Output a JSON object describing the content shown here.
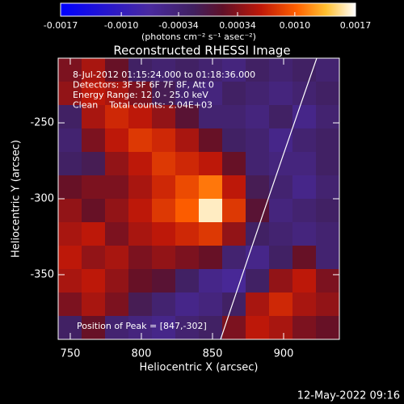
{
  "chart_data": {
    "type": "heatmap",
    "title": "Reconstructed RHESSI Image",
    "xlabel": "Heliocentric X (arcsec)",
    "ylabel": "Heliocentric Y (arcsec)",
    "annotations": [
      "8-Jul-2012 01:15:24.000 to 01:18:36.000",
      "Detectors: 3F 5F 6F 7F 8F, Att 0",
      "Energy Range: 12.0 - 25.0 keV",
      "Clean    Total counts: 2.04E+03"
    ],
    "peak_label": "Position of Peak = [847,-302]",
    "footer": "12-May-2022 09:16",
    "colorbar_label": "(photons cm⁻² s⁻¹ asec⁻²)",
    "zlim": [
      -0.0017,
      0.0017
    ],
    "zticks": [
      -0.0017,
      {
        "value": -0.001,
        "label": "-0.0010"
      },
      -0.00034,
      0.00034,
      {
        "value": 0.001,
        "label": "0.0010"
      },
      0.0017
    ],
    "colorscale": [
      [
        0,
        "#0000ff"
      ],
      [
        0.3,
        "#4a2aa0"
      ],
      [
        0.45,
        "#402060"
      ],
      [
        0.55,
        "#601028"
      ],
      [
        0.68,
        "#c01808"
      ],
      [
        0.8,
        "#ff6000"
      ],
      [
        0.9,
        "#ffc030"
      ],
      [
        1,
        "#ffffff"
      ]
    ],
    "xlim": [
      741.5,
      939.2
    ],
    "ylim": [
      -392.6,
      -207.4
    ],
    "xticks": [
      750,
      800,
      850,
      900
    ],
    "yticks": [
      -250,
      -300,
      -350
    ],
    "z": [
      [
        0.0003,
        0.0005,
        0.0002,
        -0.0002,
        -0.0003,
        -0.0002,
        -0.0003,
        -0.0004,
        -0.0002,
        -0.0003,
        -0.0002,
        -0.0003
      ],
      [
        0.0004,
        0.0006,
        0.0005,
        0.0003,
        -0.0001,
        -0.0003,
        -0.0004,
        -0.0002,
        -0.0003,
        -0.0004,
        -0.0003,
        -0.0002
      ],
      [
        -0.0002,
        0.0005,
        0.0007,
        0.0006,
        0.0004,
        0.0001,
        -0.0003,
        -0.0003,
        -0.0004,
        -0.0002,
        -0.0005,
        -0.0003
      ],
      [
        -0.0003,
        0.0003,
        0.0006,
        0.0008,
        0.0007,
        0.0005,
        0.0002,
        -0.0002,
        -0.0003,
        -0.0005,
        -0.0003,
        -0.0002
      ],
      [
        -0.0002,
        -0.0001,
        0.0004,
        0.0006,
        0.0008,
        0.0007,
        0.0006,
        0.0002,
        -0.0003,
        -0.0004,
        -0.0004,
        -0.0002
      ],
      [
        0.0002,
        0.0003,
        0.0003,
        0.0005,
        0.0007,
        0.0009,
        0.0011,
        0.0006,
        -0.0001,
        -0.0003,
        -0.0005,
        -0.0003
      ],
      [
        0.0004,
        0.0002,
        0.0004,
        0.0006,
        0.0008,
        0.001,
        0.0016,
        0.0008,
        0.0001,
        -0.0004,
        -0.0003,
        -0.0002
      ],
      [
        0.0005,
        0.0006,
        0.0003,
        0.0005,
        0.0006,
        0.0007,
        0.0008,
        0.0004,
        -0.0002,
        -0.0003,
        -0.0004,
        -0.0003
      ],
      [
        0.0006,
        0.0004,
        0.0005,
        0.0003,
        0.0004,
        0.0003,
        0.0002,
        -0.0003,
        -0.0005,
        -0.0002,
        0.0002,
        -0.0003
      ],
      [
        0.0005,
        0.0006,
        0.0004,
        0.0002,
        0.0001,
        -0.0002,
        -0.0005,
        -0.0006,
        -0.0002,
        0.0004,
        0.0006,
        0.0003
      ],
      [
        0.0003,
        0.0005,
        0.0003,
        -0.0001,
        -0.0003,
        -0.0005,
        -0.0004,
        -0.0002,
        0.0005,
        0.0007,
        0.0005,
        0.0004
      ],
      [
        -0.0002,
        0.0002,
        -0.0003,
        -0.0004,
        -0.0005,
        -0.0003,
        -0.0002,
        0.0003,
        0.0006,
        0.0005,
        0.0003,
        0.0002
      ]
    ]
  }
}
